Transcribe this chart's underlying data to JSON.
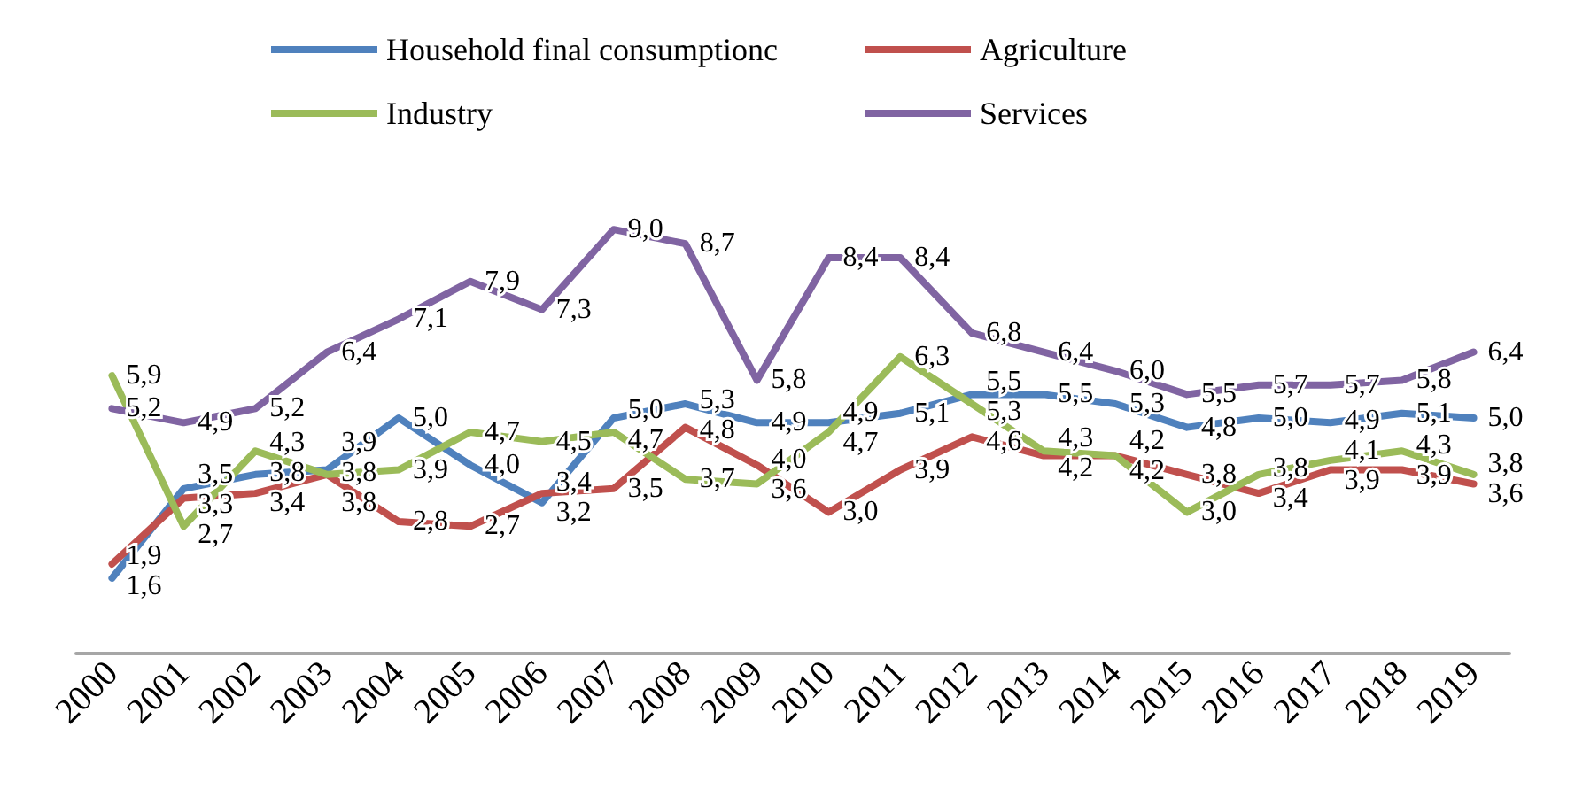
{
  "chart_data": {
    "type": "line",
    "categories": [
      "2000",
      "2001",
      "2002",
      "2003",
      "2004",
      "2005",
      "2006",
      "2007",
      "2008",
      "2009",
      "2010",
      "2011",
      "2012",
      "2013",
      "2014",
      "2015",
      "2016",
      "2017",
      "2018",
      "2019"
    ],
    "series": [
      {
        "name": "Household final consumptionc",
        "color": "#4f81bd",
        "values": [
          1.6,
          3.5,
          3.8,
          3.9,
          5.0,
          4.0,
          3.2,
          5.0,
          5.3,
          4.9,
          4.9,
          5.1,
          5.5,
          5.5,
          5.3,
          4.8,
          5.0,
          4.9,
          5.1,
          5.0
        ],
        "value_labels": [
          "1,6",
          "3,5",
          "3,8",
          "3,9",
          "5,0",
          "4,0",
          "3,2",
          "5,0",
          "5,3",
          "4,9",
          "4,9",
          "5,1",
          "5,5",
          "5,5",
          "5,3",
          "4,8",
          "5,0",
          "4,9",
          "5,1",
          "5,0"
        ]
      },
      {
        "name": "Agriculture",
        "color": "#c0504d",
        "values": [
          1.9,
          3.3,
          3.4,
          3.8,
          2.8,
          2.7,
          3.4,
          3.5,
          4.8,
          4.0,
          3.0,
          3.9,
          4.6,
          4.2,
          4.2,
          3.8,
          3.4,
          3.9,
          3.9,
          3.6
        ],
        "value_labels": [
          "1,9",
          "3,3",
          "3,4",
          "3,8",
          "2,8",
          "2,7",
          "3,4",
          "3,5",
          "4,8",
          "4,0",
          "3,0",
          "3,9",
          "4,6",
          "4,2",
          "4,2",
          "3,8",
          "3,4",
          "3,9",
          "3,9",
          "3,6"
        ]
      },
      {
        "name": "Industry",
        "color": "#9bbb59",
        "values": [
          5.9,
          2.7,
          4.3,
          3.8,
          3.9,
          4.7,
          4.5,
          4.7,
          3.7,
          3.6,
          4.7,
          6.3,
          5.3,
          4.3,
          4.2,
          3.0,
          3.8,
          4.1,
          4.3,
          3.8
        ],
        "value_labels": [
          "5,9",
          "2,7",
          "4,3",
          "3,8",
          "3,9",
          "4,7",
          "4,5",
          "4,7",
          "3,7",
          "3,6",
          "4,7",
          "6,3",
          "5,3",
          "4,3",
          "4,2",
          "3,0",
          "3,8",
          "4,1",
          "4,3",
          "3,8"
        ]
      },
      {
        "name": "Services",
        "color": "#8064a2",
        "values": [
          5.2,
          4.9,
          5.2,
          6.4,
          7.1,
          7.9,
          7.3,
          9.0,
          8.7,
          5.8,
          8.4,
          8.4,
          6.8,
          6.4,
          6.0,
          5.5,
          5.7,
          5.7,
          5.8,
          6.4
        ],
        "value_labels": [
          "5,2",
          "4,9",
          "5,2",
          "6,4",
          "7,1",
          "7,9",
          "7,3",
          "9,0",
          "8,7",
          "5,8",
          "8,4",
          "8,4",
          "6,8",
          "6,4",
          "6,0",
          "5,5",
          "5,7",
          "5,7",
          "5,8",
          "6,4"
        ]
      }
    ],
    "legend": "top",
    "grid": false,
    "marker": "none",
    "line_style": "solid"
  }
}
